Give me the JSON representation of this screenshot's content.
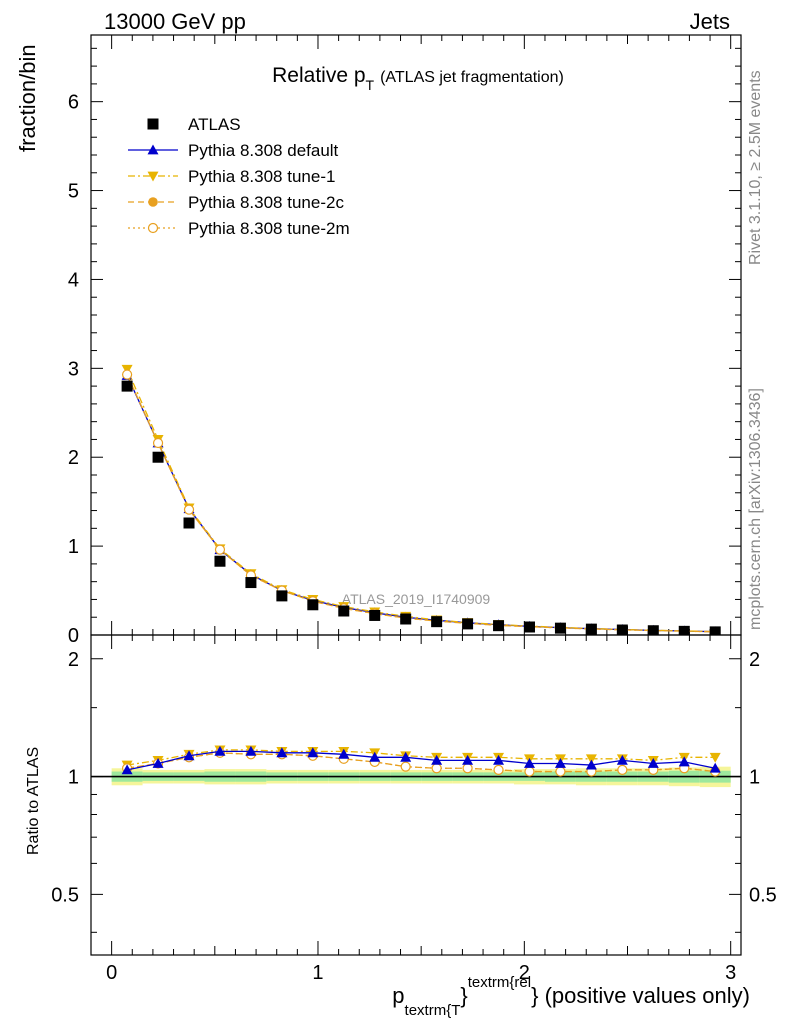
{
  "header": {
    "left": "13000 GeV pp",
    "right": "Jets"
  },
  "side_text": {
    "rivet": "Rivet 3.1.10, ≥ 2.5M events",
    "mcplots": "mcplots.cern.ch [arXiv:1306.3436]"
  },
  "watermark": "ATLAS_2019_I1740909",
  "chart_data": [
    {
      "type": "scatter",
      "title": "Relative p_T (ATLAS jet fragmentation)",
      "title_main": "Relative p",
      "title_sub": "T",
      "title_rest": "(ATLAS jet fragmentation)",
      "ylabel": "fraction/bin",
      "xlim": [
        -0.1,
        3.05
      ],
      "ylim": [
        0,
        6.75
      ],
      "y_ticks": [
        1,
        2,
        3,
        4,
        5,
        6
      ],
      "x": [
        0.075,
        0.225,
        0.375,
        0.525,
        0.675,
        0.825,
        0.975,
        1.125,
        1.275,
        1.425,
        1.575,
        1.725,
        1.875,
        2.025,
        2.175,
        2.325,
        2.475,
        2.625,
        2.775,
        2.925
      ],
      "legend_position": "top-left",
      "series": [
        {
          "name": "ATLAS",
          "color": "#000000",
          "marker": "square",
          "values": [
            2.8,
            2.0,
            1.26,
            0.83,
            0.59,
            0.44,
            0.34,
            0.27,
            0.22,
            0.18,
            0.15,
            0.125,
            0.105,
            0.09,
            0.077,
            0.066,
            0.056,
            0.048,
            0.041,
            0.035
          ]
        },
        {
          "name": "Pythia 8.308 default",
          "color": "#0000cc",
          "marker": "triangle-up",
          "line": "solid",
          "values": [
            2.92,
            2.16,
            1.42,
            0.96,
            0.68,
            0.5,
            0.39,
            0.31,
            0.25,
            0.2,
            0.165,
            0.137,
            0.115,
            0.097,
            0.083,
            0.071,
            0.062,
            0.052,
            0.045,
            0.037
          ]
        },
        {
          "name": "Pythia 8.308 tune-1",
          "color": "#e8b400",
          "marker": "triangle-down",
          "line": "dashdot",
          "values": [
            2.99,
            2.2,
            1.43,
            0.97,
            0.69,
            0.51,
            0.4,
            0.32,
            0.26,
            0.21,
            0.17,
            0.14,
            0.118,
            0.1,
            0.086,
            0.073,
            0.062,
            0.053,
            0.046,
            0.039
          ]
        },
        {
          "name": "Pythia 8.308 tune-2c",
          "color": "#e8a020",
          "marker": "circle",
          "line": "dashed",
          "values": [
            2.93,
            2.16,
            1.41,
            0.96,
            0.67,
            0.5,
            0.38,
            0.3,
            0.24,
            0.19,
            0.157,
            0.131,
            0.109,
            0.093,
            0.08,
            0.068,
            0.058,
            0.05,
            0.043,
            0.036
          ]
        },
        {
          "name": "Pythia 8.308 tune-2m",
          "color": "#e8a020",
          "marker": "circle-open",
          "line": "dotted",
          "values": [
            2.93,
            2.16,
            1.41,
            0.96,
            0.67,
            0.5,
            0.38,
            0.3,
            0.24,
            0.19,
            0.157,
            0.131,
            0.109,
            0.093,
            0.08,
            0.068,
            0.058,
            0.05,
            0.043,
            0.036
          ]
        }
      ]
    },
    {
      "type": "line",
      "ylabel": "Ratio to ATLAS",
      "xlabel_main": "p",
      "xlabel_sub": "textrm{T",
      "xlabel_sup": "textrm{rel",
      "xlabel_rest": "} (positive values only)",
      "xlabel_brace": "}",
      "xlim": [
        -0.1,
        3.05
      ],
      "ylim": [
        0.35,
        2.3
      ],
      "log_y": true,
      "x_ticks": [
        "0",
        "1",
        "2",
        "3"
      ],
      "x_tick_values": [
        0,
        1,
        2,
        3
      ],
      "y_ticks": [
        "0.5",
        "1",
        "2"
      ],
      "y_tick_values": [
        0.5,
        1,
        2
      ],
      "x": [
        0.075,
        0.225,
        0.375,
        0.525,
        0.675,
        0.825,
        0.975,
        1.125,
        1.275,
        1.425,
        1.575,
        1.725,
        1.875,
        2.025,
        2.175,
        2.325,
        2.475,
        2.625,
        2.775,
        2.925
      ],
      "band_green": [
        0.03,
        0.025,
        0.025,
        0.03,
        0.03,
        0.025,
        0.025,
        0.025,
        0.025,
        0.025,
        0.025,
        0.025,
        0.025,
        0.025,
        0.03,
        0.03,
        0.03,
        0.03,
        0.035,
        0.035
      ],
      "band_yellow": [
        0.05,
        0.04,
        0.04,
        0.045,
        0.045,
        0.04,
        0.04,
        0.04,
        0.04,
        0.04,
        0.04,
        0.04,
        0.04,
        0.045,
        0.045,
        0.05,
        0.05,
        0.05,
        0.055,
        0.06
      ],
      "series": [
        {
          "name": "Pythia 8.308 default",
          "color": "#0000cc",
          "marker": "triangle-up",
          "line": "solid",
          "values": [
            1.04,
            1.08,
            1.13,
            1.16,
            1.16,
            1.15,
            1.15,
            1.14,
            1.12,
            1.12,
            1.1,
            1.1,
            1.1,
            1.08,
            1.08,
            1.07,
            1.1,
            1.08,
            1.09,
            1.05
          ]
        },
        {
          "name": "Pythia 8.308 tune-1",
          "color": "#e8b400",
          "marker": "triangle-down",
          "line": "dashdot",
          "values": [
            1.07,
            1.1,
            1.14,
            1.17,
            1.17,
            1.16,
            1.16,
            1.16,
            1.15,
            1.13,
            1.12,
            1.12,
            1.12,
            1.11,
            1.11,
            1.11,
            1.11,
            1.1,
            1.12,
            1.12
          ]
        },
        {
          "name": "Pythia 8.308 tune-2c",
          "color": "#e8a020",
          "marker": "circle",
          "line": "dashed",
          "values": [
            1.05,
            1.08,
            1.12,
            1.15,
            1.14,
            1.14,
            1.13,
            1.11,
            1.09,
            1.06,
            1.05,
            1.05,
            1.04,
            1.03,
            1.03,
            1.03,
            1.04,
            1.04,
            1.05,
            1.03
          ]
        },
        {
          "name": "Pythia 8.308 tune-2m",
          "color": "#e8a020",
          "marker": "circle-open",
          "line": "dotted",
          "values": [
            1.05,
            1.08,
            1.12,
            1.15,
            1.14,
            1.14,
            1.13,
            1.11,
            1.09,
            1.06,
            1.05,
            1.05,
            1.04,
            1.03,
            1.03,
            1.03,
            1.04,
            1.04,
            1.05,
            1.03
          ]
        }
      ]
    }
  ]
}
